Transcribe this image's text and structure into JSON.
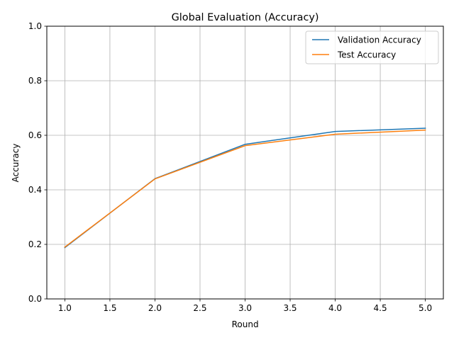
{
  "chart_data": {
    "type": "line",
    "title": "Global Evaluation (Accuracy)",
    "xlabel": "Round",
    "ylabel": "Accuracy",
    "xlim": [
      0.8,
      5.2
    ],
    "ylim": [
      0.0,
      1.0
    ],
    "xticks": [
      1.0,
      1.5,
      2.0,
      2.5,
      3.0,
      3.5,
      4.0,
      4.5,
      5.0
    ],
    "xtick_labels": [
      "1.0",
      "1.5",
      "2.0",
      "2.5",
      "3.0",
      "3.5",
      "4.0",
      "4.5",
      "5.0"
    ],
    "yticks": [
      0.0,
      0.2,
      0.4,
      0.6,
      0.8,
      1.0
    ],
    "ytick_labels": [
      "0.0",
      "0.2",
      "0.4",
      "0.6",
      "0.8",
      "1.0"
    ],
    "grid": true,
    "legend_position": "top-right",
    "x": [
      1,
      2,
      3,
      4,
      5
    ],
    "series": [
      {
        "name": "Validation Accuracy",
        "color": "#1f77b4",
        "values": [
          0.188,
          0.441,
          0.567,
          0.614,
          0.626
        ]
      },
      {
        "name": "Test Accuracy",
        "color": "#ff7f0e",
        "values": [
          0.19,
          0.44,
          0.562,
          0.604,
          0.619
        ]
      }
    ]
  }
}
